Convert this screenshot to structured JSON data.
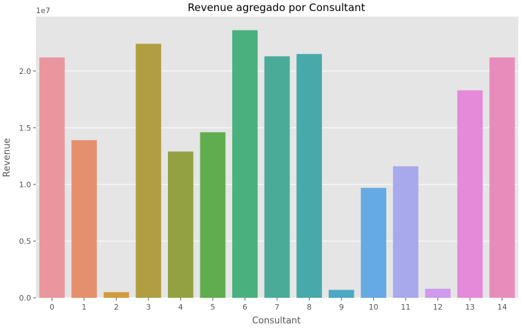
{
  "chart_data": {
    "type": "bar",
    "title": "Revenue agregado por Consultant",
    "xlabel": "Consultant",
    "ylabel": "Revenue",
    "scale_label": "1e7",
    "categories": [
      "0",
      "1",
      "2",
      "3",
      "4",
      "5",
      "6",
      "7",
      "8",
      "9",
      "10",
      "11",
      "12",
      "13",
      "14"
    ],
    "values": [
      21200000,
      13900000,
      500000,
      22400000,
      12900000,
      14600000,
      23600000,
      21300000,
      21500000,
      700000,
      9700000,
      11600000,
      800000,
      18300000,
      21200000
    ],
    "ylim": [
      0,
      24800000
    ],
    "yticks": [
      {
        "value": 0,
        "label": "0.0"
      },
      {
        "value": 5000000,
        "label": "0.5"
      },
      {
        "value": 10000000,
        "label": "1.0"
      },
      {
        "value": 15000000,
        "label": "1.5"
      },
      {
        "value": 20000000,
        "label": "2.0"
      }
    ],
    "colors": [
      "#ea969e",
      "#e5906c",
      "#d19a3d",
      "#b09e40",
      "#93a143",
      "#5fad4e",
      "#4ab17e",
      "#4aac98",
      "#48a9aa",
      "#4ca8c3",
      "#65aae2",
      "#a8a8ec",
      "#cf99ec",
      "#e48ad9",
      "#e88cbb"
    ],
    "background": "#e5e5e5",
    "grid": true
  }
}
